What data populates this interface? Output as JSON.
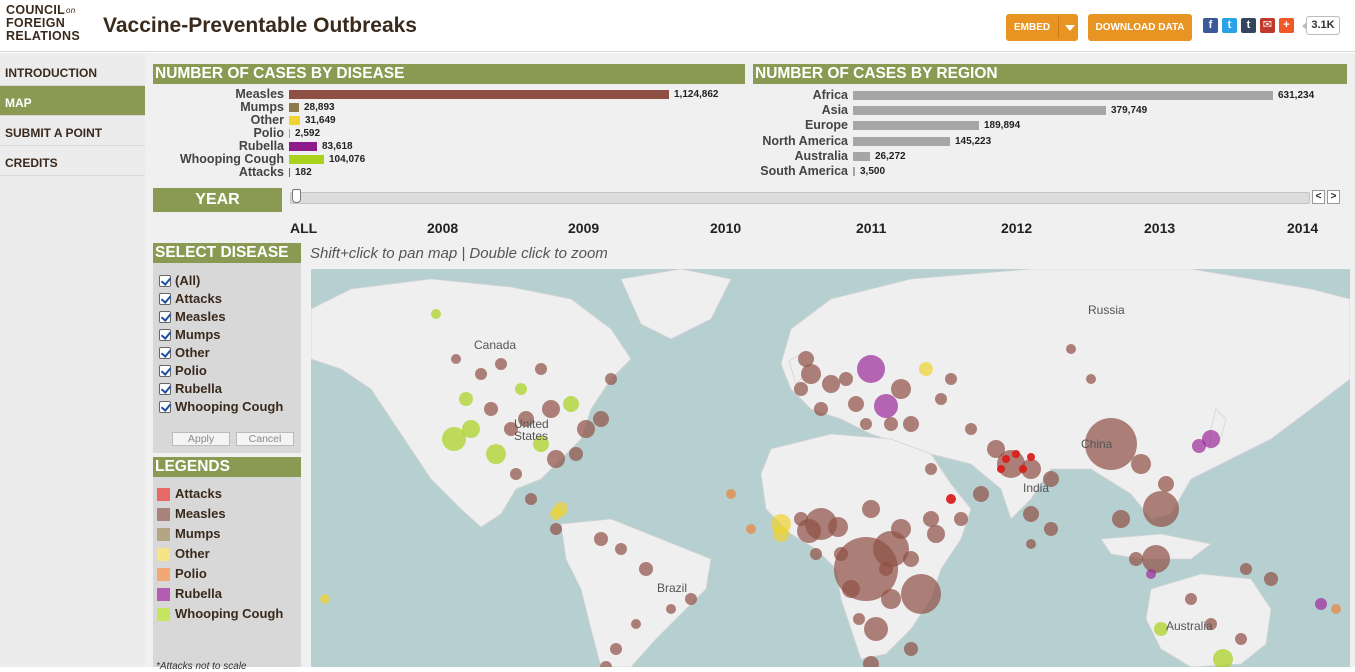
{
  "header": {
    "logo": {
      "line1": "COUNCIL",
      "line1_small": "on",
      "line2": "FOREIGN",
      "line3": "RELATIONS"
    },
    "title": "Vaccine-Preventable Outbreaks",
    "embed_label": "EMBED",
    "download_label": "DOWNLOAD DATA",
    "share_icons": [
      {
        "name": "facebook-icon",
        "glyph": "f",
        "color": "#3b5998"
      },
      {
        "name": "twitter-icon",
        "glyph": "t",
        "color": "#2aa3e6"
      },
      {
        "name": "tumblr-icon",
        "glyph": "t",
        "color": "#34465d"
      },
      {
        "name": "email-icon",
        "glyph": "✉",
        "color": "#c0392b"
      },
      {
        "name": "more-icon",
        "glyph": "+",
        "color": "#f0582a"
      }
    ],
    "share_count": "3.1K"
  },
  "nav": {
    "items": [
      {
        "label": "INTRODUCTION",
        "active": false
      },
      {
        "label": "MAP",
        "active": true
      },
      {
        "label": "SUBMIT A POINT",
        "active": false
      },
      {
        "label": "CREDITS",
        "active": false
      }
    ]
  },
  "chart_data": [
    {
      "type": "bar",
      "title": "NUMBER OF CASES BY DISEASE",
      "categories": [
        "Measles",
        "Mumps",
        "Other",
        "Polio",
        "Rubella",
        "Whooping Cough",
        "Attacks"
      ],
      "values": [
        1124862,
        28893,
        31649,
        2592,
        83618,
        104076,
        182
      ],
      "value_labels": [
        "1,124,862",
        "28,893",
        "31,649",
        "2,592",
        "83,618",
        "104,076",
        "182"
      ],
      "colors": [
        "#8f5044",
        "#8c7a4a",
        "#f0d330",
        "#e3945e",
        "#8d1c8b",
        "#a8d21c",
        "#d9362f"
      ]
    },
    {
      "type": "bar",
      "title": "NUMBER OF CASES BY REGION",
      "categories": [
        "Africa",
        "Asia",
        "Europe",
        "North America",
        "Australia",
        "South America"
      ],
      "values": [
        631234,
        379749,
        189894,
        145223,
        26272,
        3500
      ],
      "value_labels": [
        "631,234",
        "379,749",
        "189,894",
        "145,223",
        "26,272",
        "3,500"
      ],
      "colors": [
        "#a6a6a6",
        "#a6a6a6",
        "#a6a6a6",
        "#a6a6a6",
        "#a6a6a6",
        "#a6a6a6"
      ]
    }
  ],
  "timeline": {
    "label": "YEAR",
    "ticks": [
      "ALL",
      "2008",
      "2009",
      "2010",
      "2011",
      "2012",
      "2013",
      "2014"
    ],
    "prev_glyph": "<",
    "next_glyph": ">"
  },
  "select_disease": {
    "title": "SELECT DISEASE",
    "options": [
      "(All)",
      "Attacks",
      "Measles",
      "Mumps",
      "Other",
      "Polio",
      "Rubella",
      "Whooping Cough"
    ],
    "apply_label": "Apply",
    "cancel_label": "Cancel"
  },
  "legends": {
    "title": "LEGENDS",
    "items": [
      {
        "label": "Attacks",
        "color": "#e86a66"
      },
      {
        "label": "Measles",
        "color": "#a8837b"
      },
      {
        "label": "Mumps",
        "color": "#b5a683"
      },
      {
        "label": "Other",
        "color": "#f6e489"
      },
      {
        "label": "Polio",
        "color": "#f1a875"
      },
      {
        "label": "Rubella",
        "color": "#b45cb3"
      },
      {
        "label": "Whooping Cough",
        "color": "#c5e760"
      }
    ],
    "footnote": "*Attacks not to scale"
  },
  "map": {
    "instructions": "Shift+click to pan map | Double click to zoom",
    "labels": [
      "Canada",
      "Russia",
      "United States",
      "India",
      "China",
      "Brazil",
      "Australia"
    ],
    "colors": {
      "water": "#b6cfd1",
      "land": "#efefef",
      "measles": "#8f5044",
      "whooping": "#a8d21c",
      "polio": "#e8843a",
      "other": "#f0d330",
      "rubella": "#9c2a9a",
      "attacks": "#d9201a",
      "mumps": "#8c7a4a"
    }
  }
}
